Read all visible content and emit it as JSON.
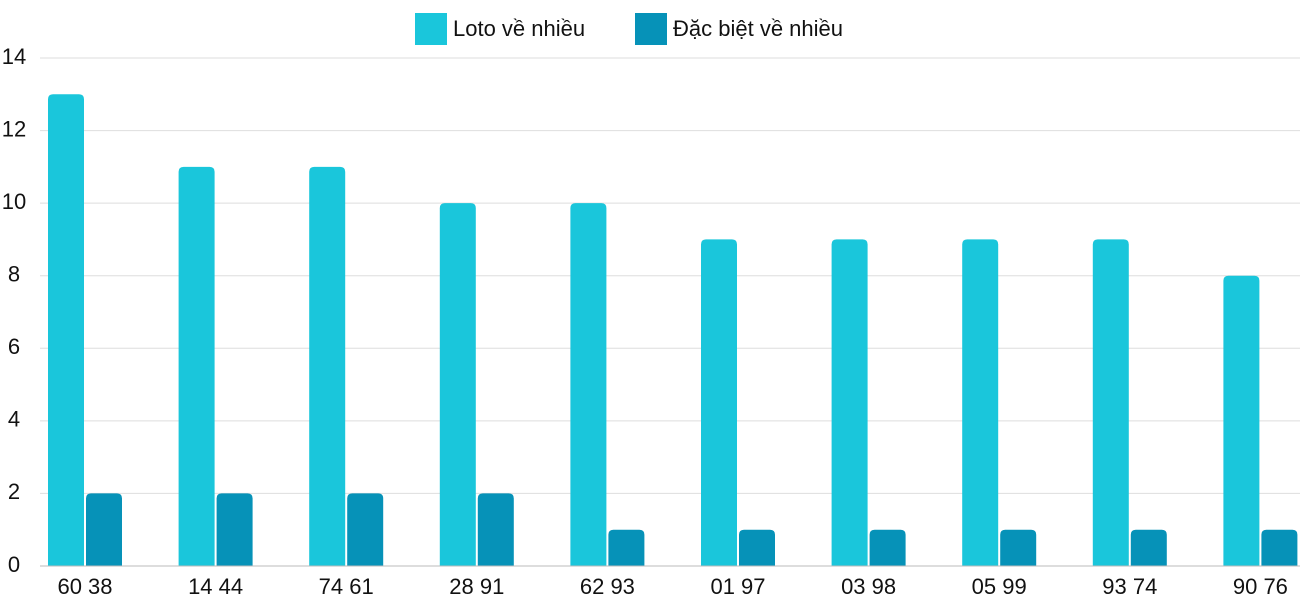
{
  "chart_data": {
    "type": "bar",
    "categories": [
      "60 38",
      "14 44",
      "74 61",
      "28 91",
      "62 93",
      "01 97",
      "03 98",
      "05 99",
      "93 74",
      "90 76"
    ],
    "series": [
      {
        "name": "Loto về nhiều",
        "color": "#1ac6db",
        "values": [
          13,
          11,
          11,
          10,
          10,
          9,
          9,
          9,
          9,
          8
        ]
      },
      {
        "name": "Đặc biệt về nhiều",
        "color": "#0692b8",
        "values": [
          2,
          2,
          2,
          2,
          1,
          1,
          1,
          1,
          1,
          1
        ]
      }
    ],
    "ylim": [
      0,
      14
    ],
    "yticks": [
      0,
      2,
      4,
      6,
      8,
      10,
      12,
      14
    ],
    "grid": true,
    "legend": "top"
  }
}
